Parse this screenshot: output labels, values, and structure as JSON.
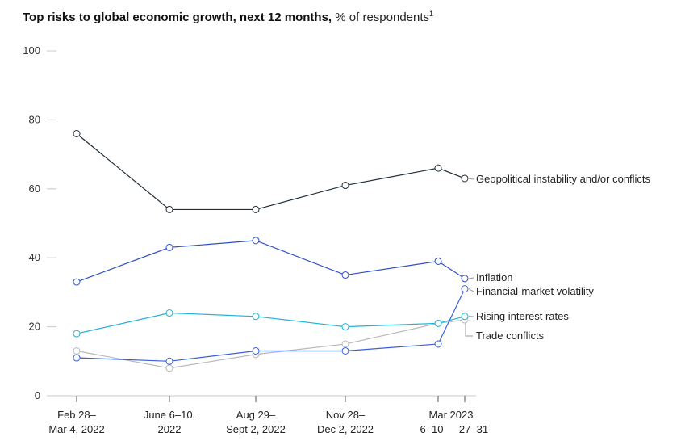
{
  "chart_data": {
    "type": "line",
    "title": "Top risks to global economic growth, next 12 months,",
    "subtitle": "% of respondents",
    "footnote_marker": "1",
    "ylim": [
      0,
      100
    ],
    "yticks": [
      0,
      20,
      40,
      60,
      80,
      100
    ],
    "grid": false,
    "categories": [
      {
        "line1": "Feb 28–",
        "line2": "Mar 4, 2022"
      },
      {
        "line1": "June 6–10,",
        "line2": "2022"
      },
      {
        "line1": "Aug 29–",
        "line2": "Sept 2, 2022"
      },
      {
        "line1": "Nov 28–",
        "line2": "Dec 2, 2022"
      },
      {
        "line1": "Mar 2023",
        "line2": "6–10"
      },
      {
        "line1": "",
        "line2": "27–31"
      }
    ],
    "series": [
      {
        "name": "Geopolitical instability and/or conflicts",
        "color": "#1f2d3a",
        "values": [
          76,
          54,
          54,
          61,
          66,
          63
        ]
      },
      {
        "name": "Inflation",
        "color": "#2f4ec7",
        "values": [
          33,
          43,
          45,
          35,
          39,
          34
        ]
      },
      {
        "name": "Financial-market volatility",
        "color": "#3a5fe0",
        "values": [
          11,
          10,
          13,
          13,
          15,
          31
        ]
      },
      {
        "name": "Rising interest rates",
        "color": "#1fb3d9",
        "values": [
          18,
          24,
          23,
          20,
          21,
          23
        ]
      },
      {
        "name": "Trade conflicts",
        "color": "#b9b9b9",
        "values": [
          13,
          8,
          12,
          15,
          21,
          22
        ]
      }
    ]
  }
}
